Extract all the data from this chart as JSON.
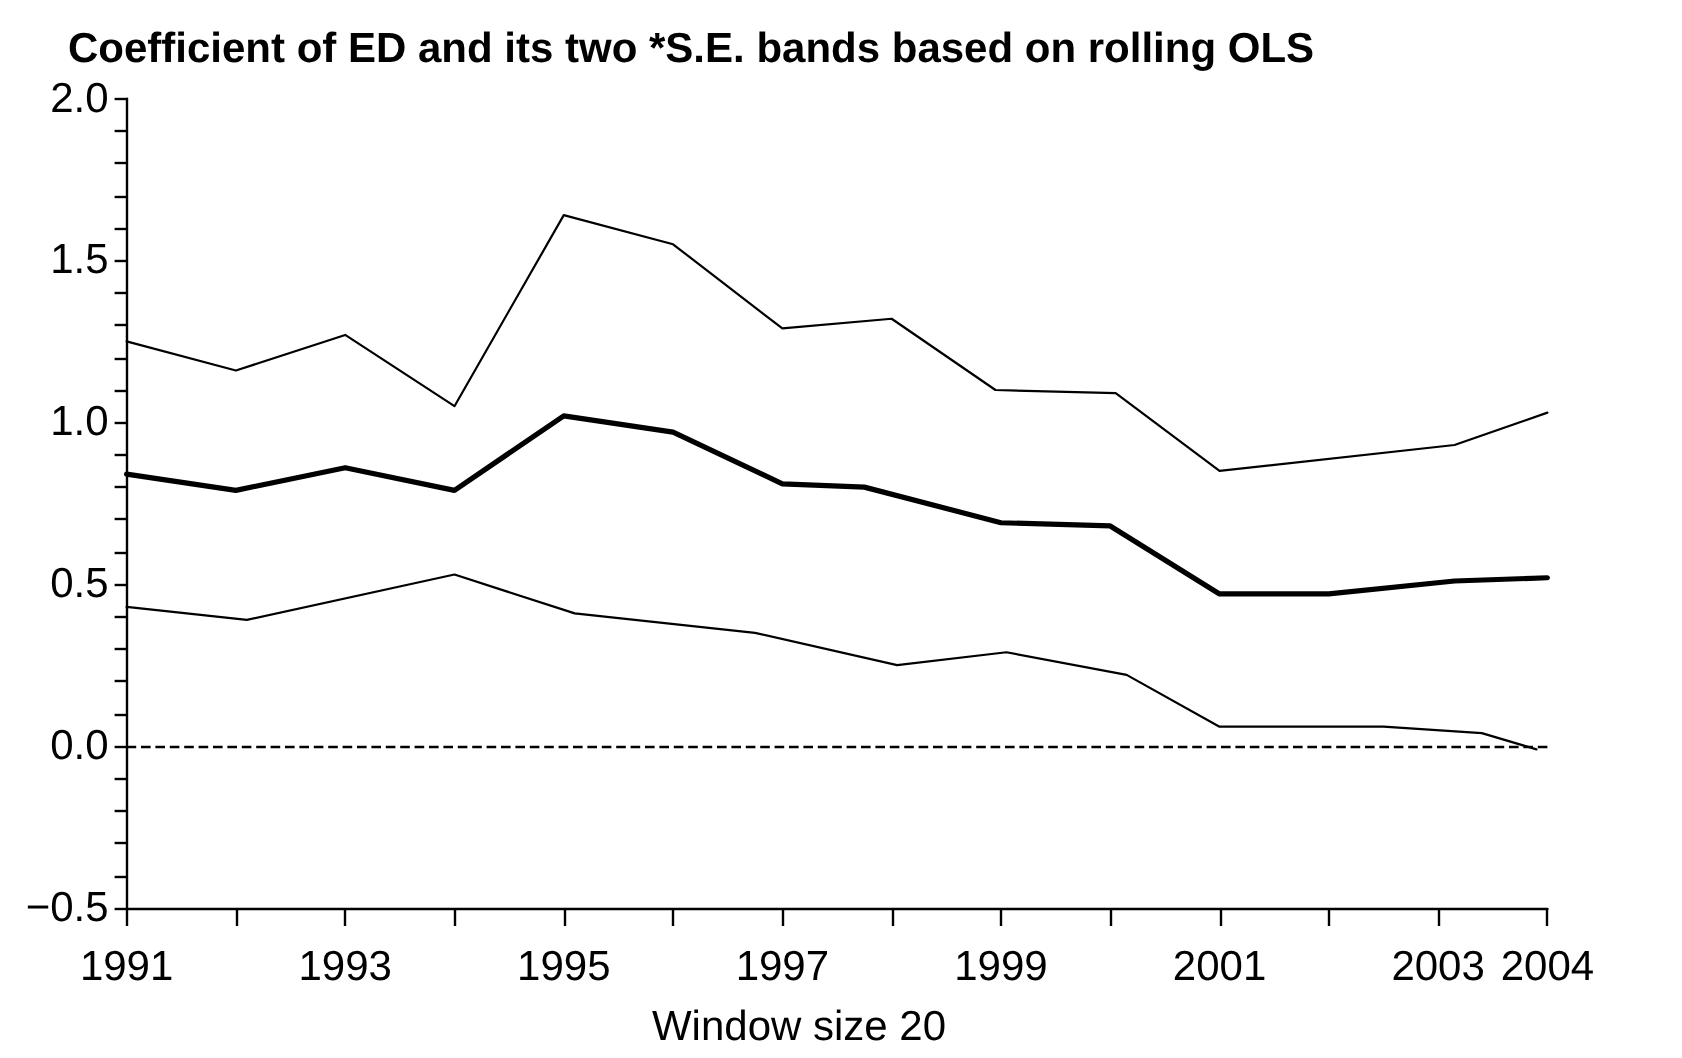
{
  "chart_data": {
    "type": "line",
    "title": "Coefficient of ED and its two *S.E. bands based on rolling OLS",
    "xlabel": "Window size 20",
    "xlim": [
      1991,
      2004
    ],
    "xticks": [
      1991,
      {
        "value": 1992,
        "label": null
      },
      1993,
      {
        "value": 1994,
        "label": null
      },
      1995,
      {
        "value": 1996,
        "label": null
      },
      1997,
      {
        "value": 1998,
        "label": null
      },
      1999,
      {
        "value": 2000,
        "label": null
      },
      2001,
      {
        "value": 2002,
        "label": null
      },
      2003,
      2004
    ],
    "ylim": [
      -0.5,
      2
    ],
    "yticks": [
      {
        "value": -0.5,
        "label": "−0.5"
      },
      {
        "value": -0.4,
        "label": null
      },
      {
        "value": -0.3,
        "label": null
      },
      {
        "value": -0.2,
        "label": null
      },
      {
        "value": -0.1,
        "label": null
      },
      {
        "value": 0,
        "label": "0.0"
      },
      {
        "value": 0.1,
        "label": null
      },
      {
        "value": 0.2,
        "label": null
      },
      {
        "value": 0.3,
        "label": null
      },
      {
        "value": 0.4,
        "label": null
      },
      {
        "value": 0.5,
        "label": "0.5"
      },
      {
        "value": 0.6,
        "label": null
      },
      {
        "value": 0.7,
        "label": null
      },
      {
        "value": 0.8,
        "label": null
      },
      {
        "value": 0.9,
        "label": null
      },
      {
        "value": 1,
        "label": "1.0"
      },
      {
        "value": 1.1,
        "label": null
      },
      {
        "value": 1.2,
        "label": null
      },
      {
        "value": 1.3,
        "label": null
      },
      {
        "value": 1.4,
        "label": null
      },
      {
        "value": 1.5,
        "label": "1.5"
      },
      {
        "value": 1.6,
        "label": null
      },
      {
        "value": 1.7,
        "label": null
      },
      {
        "value": 1.8,
        "label": null
      },
      {
        "value": 1.9,
        "label": null
      },
      {
        "value": 2,
        "label": "2.0"
      }
    ],
    "marker": "none",
    "series": [
      {
        "color": "#000000",
        "x": [
          1991,
          1992,
          1993,
          1994,
          1995,
          1996,
          1997,
          1997.75,
          1999,
          2000,
          2001,
          2002,
          2003.15,
          2004
        ],
        "values": [
          0.84,
          0.79,
          0.86,
          0.79,
          1.02,
          0.97,
          0.81,
          0.8,
          0.69,
          0.68,
          0.47,
          0.47,
          0.51,
          0.52
        ]
      },
      {
        "color": "#000000",
        "x": [
          1991,
          1992,
          1993,
          1994,
          1995,
          1996,
          1997,
          1998,
          1998.95,
          2000.05,
          2001,
          2003.15,
          2004
        ],
        "values": [
          1.25,
          1.16,
          1.27,
          1.05,
          1.64,
          1.55,
          1.29,
          1.32,
          1.1,
          1.09,
          0.85,
          0.93,
          1.03
        ]
      },
      {
        "color": "#000000",
        "x": [
          1991,
          1992.1,
          1994,
          1995.1,
          1996.75,
          1998.05,
          1999.05,
          2000.15,
          2001,
          2002.5,
          2003.4,
          2003.9
        ],
        "values": [
          0.43,
          0.39,
          0.53,
          0.41,
          0.35,
          0.25,
          0.29,
          0.22,
          0.06,
          0.06,
          0.04,
          -0.01
        ]
      }
    ],
    "ref_lines": [
      {
        "axis": "y",
        "value": 0,
        "line_style": "dashed",
        "color": "#000000"
      }
    ]
  }
}
